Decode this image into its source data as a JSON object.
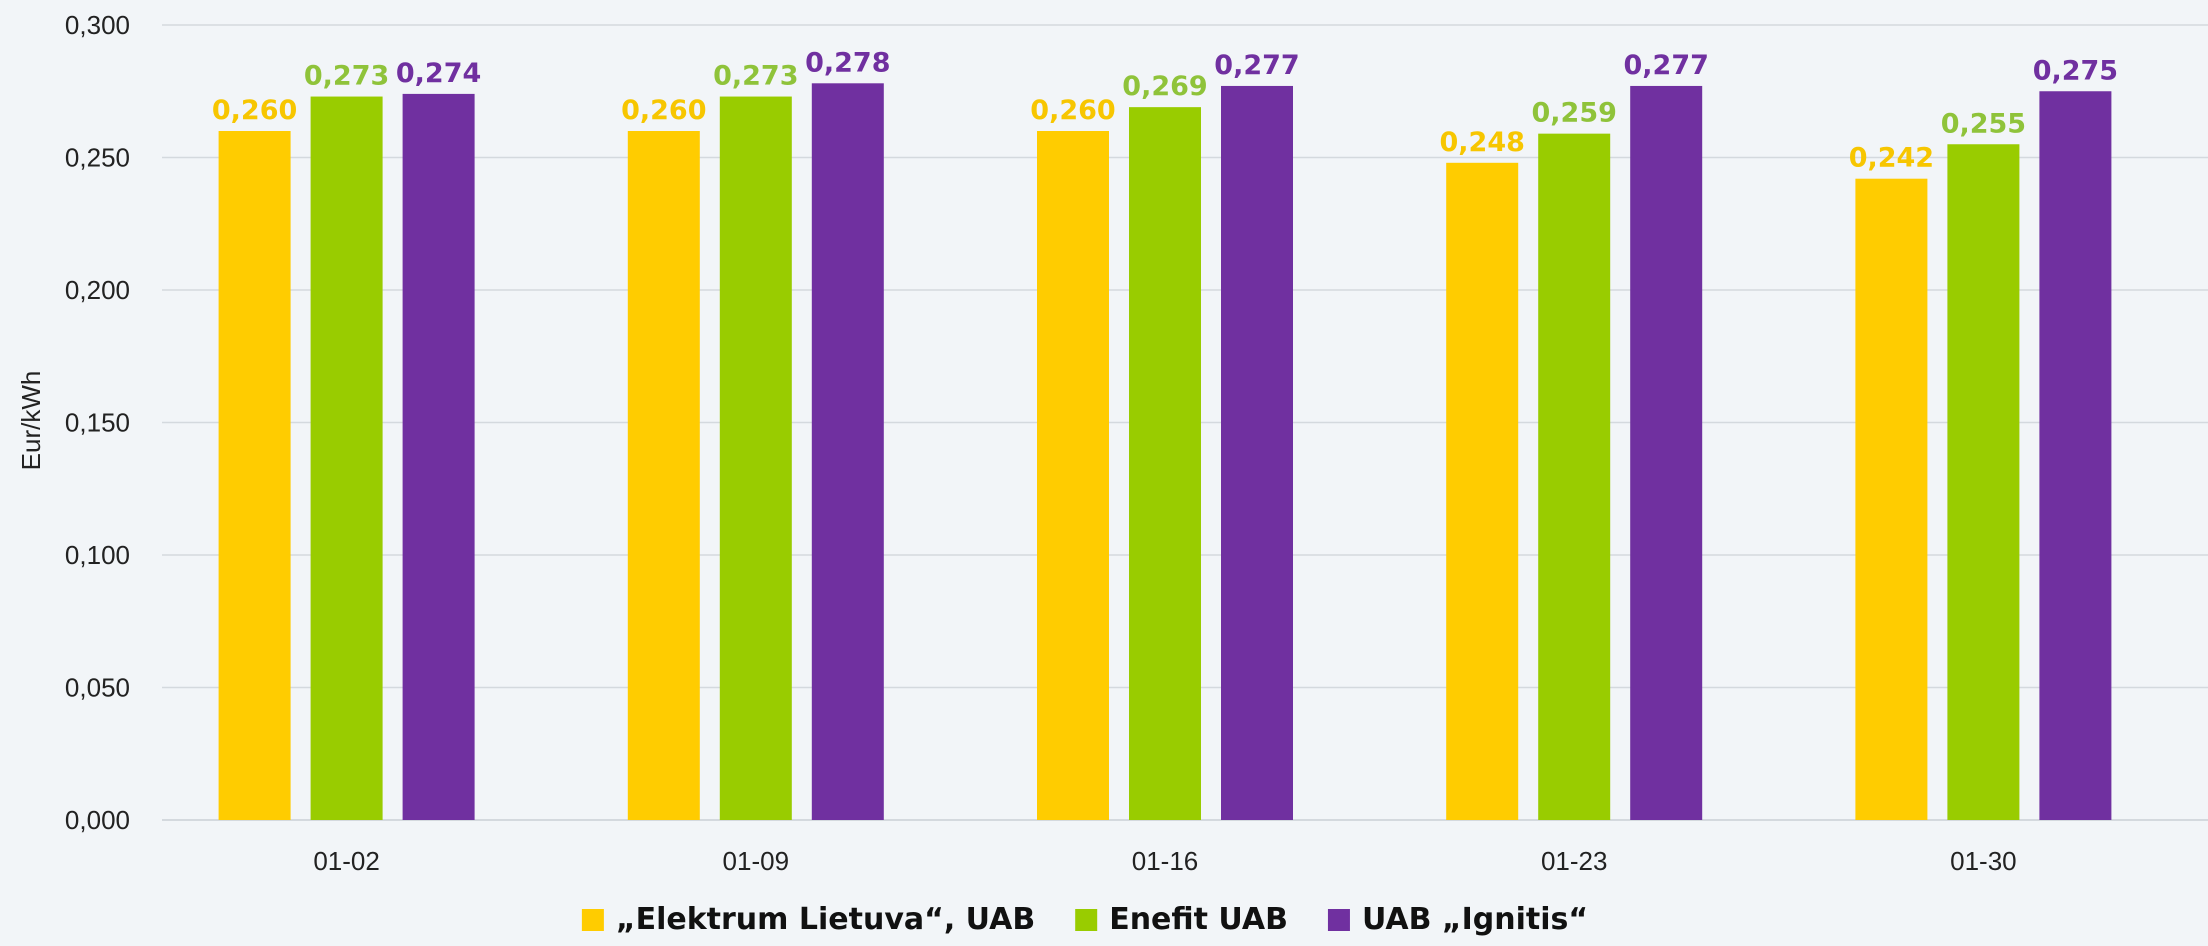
{
  "chart_data": {
    "type": "bar",
    "title": "",
    "xlabel": "",
    "ylabel": "Eur/kWh",
    "ylim": [
      0,
      0.3
    ],
    "yticks": [
      "0,000",
      "0,050",
      "0,100",
      "0,150",
      "0,200",
      "0,250",
      "0,300"
    ],
    "ytick_values": [
      0,
      0.05,
      0.1,
      0.15,
      0.2,
      0.25,
      0.3
    ],
    "grid": true,
    "legend_position": "bottom",
    "categories": [
      "01-02",
      "01-09",
      "01-16",
      "01-23",
      "01-30"
    ],
    "series": [
      {
        "name": "„Elektrum Lietuva“, UAB",
        "color": "#ffcc00",
        "values": [
          0.26,
          0.26,
          0.26,
          0.248,
          0.242
        ],
        "labels": [
          "0,260",
          "0,260",
          "0,260",
          "0,248",
          "0,242"
        ]
      },
      {
        "name": "Enefit UAB",
        "color": "#99cc00",
        "values": [
          0.273,
          0.273,
          0.269,
          0.259,
          0.255
        ],
        "labels": [
          "0,273",
          "0,273",
          "0,269",
          "0,259",
          "0,255"
        ]
      },
      {
        "name": "UAB „Ignitis“",
        "color": "#7030a0",
        "values": [
          0.274,
          0.278,
          0.277,
          0.277,
          0.275
        ],
        "labels": [
          "0,274",
          "0,278",
          "0,277",
          "0,277",
          "0,275"
        ]
      }
    ],
    "colors": {
      "background": "#f2f5f8",
      "grid": "#d4d9de",
      "text": "#222222",
      "label_yellow": "#f7c600",
      "label_green": "#8fc33a",
      "label_purple": "#7030a0"
    }
  }
}
